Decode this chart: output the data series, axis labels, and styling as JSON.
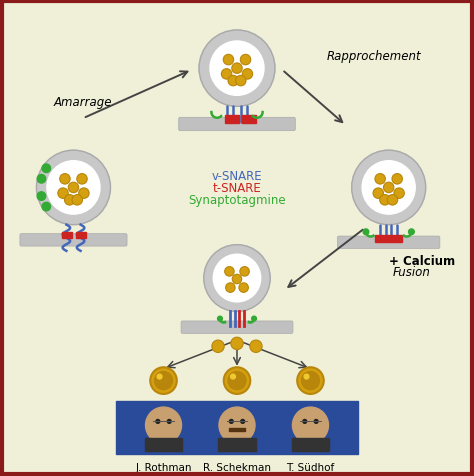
{
  "bg_color": "#f0f0d8",
  "border_color": "#8b1a1a",
  "vesicle_fill": "#ffffff",
  "vesicle_ring": "#c8c8c8",
  "vesicle_ring_dark": "#aaaaaa",
  "granule_color": "#d4a010",
  "granule_edge": "#b8860b",
  "membrane_color": "#c0c0c0",
  "membrane_dark": "#aaaaaa",
  "vsnare_color": "#4466bb",
  "tsnare_color": "#cc2222",
  "synapto_color": "#33aa33",
  "label_amarrage": "Amarrage",
  "label_rapprochement": "Rapprochement",
  "label_fusion": "Fusion",
  "label_calcium": "+ Calcium",
  "label_vsnare": "v-SNARE",
  "label_tsnare": "t-SNARE",
  "label_synapto": "Synaptotagmine",
  "names": [
    "J. Rothman",
    "R. Schekman",
    "T. Südhof"
  ],
  "photo_box_color": "#2a4a9a",
  "arrow_color": "#444444",
  "medal_color": "#d4a010",
  "medal_inner": "#b8860b",
  "medal_highlight": "#f0c830"
}
